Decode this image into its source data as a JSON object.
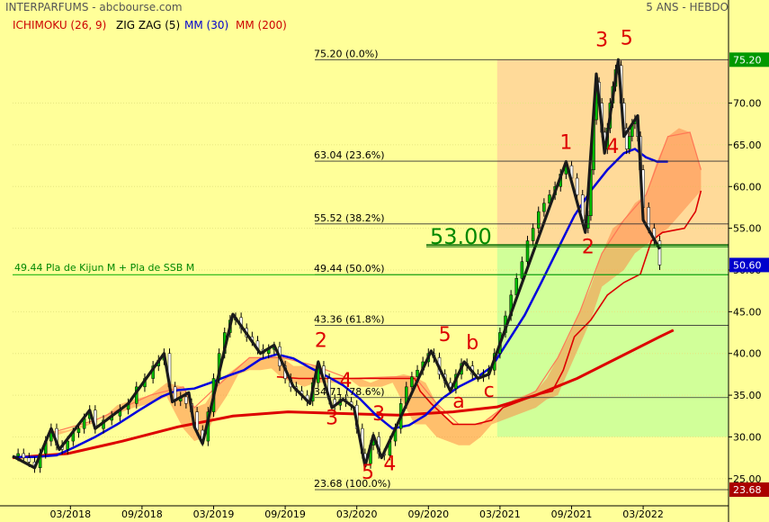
{
  "header": {
    "source": "INTERPARFUMS - abcbourse.com",
    "period": "5 ANS - HEBDO",
    "indicators": [
      {
        "label": "ICHIMOKU (26, 9)",
        "color": "#cc0000"
      },
      {
        "label": "ZIG ZAG (5)",
        "color": "#000000"
      },
      {
        "label": "MM (30)",
        "color": "#0000cc"
      },
      {
        "label": "MM (200)",
        "color": "#cc0000"
      }
    ]
  },
  "chart_data": {
    "type": "line",
    "ylim": [
      22.5,
      77.5
    ],
    "xlim": [
      0,
      260
    ],
    "y_ticks": [
      25,
      30,
      35,
      40,
      45,
      50,
      55,
      60,
      65,
      70
    ],
    "x_ticks": [
      {
        "label": "03/2018",
        "x": 21
      },
      {
        "label": "09/2018",
        "x": 47
      },
      {
        "label": "03/2019",
        "x": 73
      },
      {
        "label": "09/2019",
        "x": 99
      },
      {
        "label": "03/2020",
        "x": 125
      },
      {
        "label": "09/2020",
        "x": 151
      },
      {
        "label": "03/2021",
        "x": 177
      },
      {
        "label": "09/2021",
        "x": 203
      },
      {
        "label": "03/2022",
        "x": 229
      }
    ],
    "fib_levels": [
      {
        "price": 75.2,
        "label": "75.20  (0.0%)"
      },
      {
        "price": 63.04,
        "label": "63.04  (23.6%)"
      },
      {
        "price": 55.52,
        "label": "55.52  (38.2%)"
      },
      {
        "price": 49.44,
        "label": "49.44  (50.0%)"
      },
      {
        "price": 43.36,
        "label": "43.36  (61.8%)"
      },
      {
        "price": 34.71,
        "label": "34.71  (78.6%)"
      },
      {
        "price": 23.68,
        "label": "23.68  (100.0%)"
      }
    ],
    "fib_x_start": 176,
    "annotations": {
      "level_53": {
        "value": 53.0,
        "label": "53.00"
      },
      "level_kijun": {
        "value": 49.44,
        "label": "49.44 Pla de Kijun M + Pla de SSB M"
      }
    },
    "price_tags": [
      {
        "value": 75.2,
        "label": "75.20",
        "color": "#009900"
      },
      {
        "value": 50.6,
        "label": "50.60",
        "color": "#0000cc"
      },
      {
        "value": 23.68,
        "label": "23.68",
        "color": "#aa0000"
      }
    ],
    "wave_labels": [
      {
        "text": "2",
        "x": 112,
        "y": 40.8
      },
      {
        "text": "4",
        "x": 121,
        "y": 36.0
      },
      {
        "text": "3",
        "x": 116,
        "y": 31.5
      },
      {
        "text": "3",
        "x": 133,
        "y": 32.0
      },
      {
        "text": "5",
        "x": 129,
        "y": 25.0
      },
      {
        "text": "4",
        "x": 137,
        "y": 26.0
      },
      {
        "text": "5",
        "x": 157,
        "y": 41.5
      },
      {
        "text": "b",
        "x": 167,
        "y": 40.5
      },
      {
        "text": "a",
        "x": 162,
        "y": 33.5
      },
      {
        "text": "c",
        "x": 173,
        "y": 34.8
      },
      {
        "text": "1",
        "x": 201,
        "y": 64.5
      },
      {
        "text": "2",
        "x": 209,
        "y": 52.0
      },
      {
        "text": "3",
        "x": 214,
        "y": 76.8
      },
      {
        "text": "5",
        "x": 223,
        "y": 77.0
      },
      {
        "text": "4",
        "x": 218,
        "y": 64.0
      }
    ],
    "zigzag": [
      [
        0,
        27.7
      ],
      [
        8,
        26.3
      ],
      [
        14,
        31.0
      ],
      [
        17,
        28.5
      ],
      [
        28,
        33.2
      ],
      [
        30,
        31.0
      ],
      [
        42,
        34.0
      ],
      [
        55,
        40.0
      ],
      [
        58,
        34.2
      ],
      [
        64,
        35.3
      ],
      [
        66,
        31.2
      ],
      [
        69,
        29.2
      ],
      [
        80,
        44.7
      ],
      [
        90,
        40.0
      ],
      [
        95,
        41.0
      ],
      [
        102,
        36.0
      ],
      [
        108,
        34.0
      ],
      [
        111,
        39.0
      ],
      [
        116,
        33.5
      ],
      [
        120,
        34.5
      ],
      [
        124,
        33.5
      ],
      [
        128,
        26.5
      ],
      [
        131,
        30.2
      ],
      [
        134,
        27.5
      ],
      [
        139,
        31.0
      ],
      [
        152,
        40.3
      ],
      [
        159,
        35.5
      ],
      [
        164,
        39.0
      ],
      [
        169,
        37.0
      ],
      [
        173,
        37.5
      ],
      [
        201,
        63.0
      ],
      [
        208,
        54.5
      ],
      [
        212,
        73.5
      ],
      [
        215,
        64.0
      ],
      [
        220,
        75.2
      ],
      [
        222,
        66.0
      ],
      [
        227,
        68.5
      ],
      [
        229,
        56.0
      ],
      [
        235,
        52.5
      ]
    ],
    "close": [
      [
        0,
        27.7
      ],
      [
        2,
        28.0
      ],
      [
        4,
        27.5
      ],
      [
        6,
        27.0
      ],
      [
        8,
        26.3
      ],
      [
        10,
        28.0
      ],
      [
        12,
        29.5
      ],
      [
        14,
        31.0
      ],
      [
        16,
        29.0
      ],
      [
        18,
        28.5
      ],
      [
        20,
        29.5
      ],
      [
        22,
        30.5
      ],
      [
        24,
        31.0
      ],
      [
        26,
        32.2
      ],
      [
        28,
        33.2
      ],
      [
        30,
        31.0
      ],
      [
        33,
        32.0
      ],
      [
        36,
        32.5
      ],
      [
        39,
        33.3
      ],
      [
        42,
        34.0
      ],
      [
        45,
        36.0
      ],
      [
        48,
        37.0
      ],
      [
        51,
        38.5
      ],
      [
        53,
        39.2
      ],
      [
        55,
        40.0
      ],
      [
        57,
        36.0
      ],
      [
        59,
        34.3
      ],
      [
        61,
        34.8
      ],
      [
        63,
        34.0
      ],
      [
        65,
        33.0
      ],
      [
        67,
        30.8
      ],
      [
        69,
        29.5
      ],
      [
        71,
        33.0
      ],
      [
        73,
        37.0
      ],
      [
        75,
        40.0
      ],
      [
        77,
        42.5
      ],
      [
        79,
        44.0
      ],
      [
        81,
        44.3
      ],
      [
        83,
        43.0
      ],
      [
        85,
        42.0
      ],
      [
        87,
        41.5
      ],
      [
        89,
        40.5
      ],
      [
        91,
        40.0
      ],
      [
        93,
        40.5
      ],
      [
        95,
        40.8
      ],
      [
        97,
        38.5
      ],
      [
        99,
        37.0
      ],
      [
        101,
        36.0
      ],
      [
        103,
        35.5
      ],
      [
        105,
        35.0
      ],
      [
        107,
        34.3
      ],
      [
        109,
        36.5
      ],
      [
        111,
        38.5
      ],
      [
        113,
        37.0
      ],
      [
        115,
        34.5
      ],
      [
        117,
        33.8
      ],
      [
        119,
        34.5
      ],
      [
        121,
        34.2
      ],
      [
        123,
        33.8
      ],
      [
        125,
        31.0
      ],
      [
        127,
        28.0
      ],
      [
        128,
        26.8
      ],
      [
        130,
        29.0
      ],
      [
        131,
        30.0
      ],
      [
        133,
        28.0
      ],
      [
        135,
        27.8
      ],
      [
        137,
        29.5
      ],
      [
        139,
        31.0
      ],
      [
        141,
        34.0
      ],
      [
        143,
        36.0
      ],
      [
        145,
        37.2
      ],
      [
        147,
        38.0
      ],
      [
        149,
        39.0
      ],
      [
        151,
        40.0
      ],
      [
        153,
        39.5
      ],
      [
        155,
        37.5
      ],
      [
        157,
        36.5
      ],
      [
        159,
        35.8
      ],
      [
        161,
        37.5
      ],
      [
        163,
        38.8
      ],
      [
        165,
        38.5
      ],
      [
        167,
        37.5
      ],
      [
        169,
        37.2
      ],
      [
        171,
        37.5
      ],
      [
        173,
        38.0
      ],
      [
        175,
        40.0
      ],
      [
        177,
        42.5
      ],
      [
        179,
        44.5
      ],
      [
        181,
        47.0
      ],
      [
        183,
        49.0
      ],
      [
        185,
        51.0
      ],
      [
        187,
        53.5
      ],
      [
        189,
        55.0
      ],
      [
        191,
        57.0
      ],
      [
        193,
        58.0
      ],
      [
        195,
        59.0
      ],
      [
        197,
        60.0
      ],
      [
        199,
        61.5
      ],
      [
        201,
        62.5
      ],
      [
        203,
        61.0
      ],
      [
        205,
        59.0
      ],
      [
        207,
        56.0
      ],
      [
        208,
        55.0
      ],
      [
        209,
        56.5
      ],
      [
        210,
        62.0
      ],
      [
        211,
        68.0
      ],
      [
        212,
        72.5
      ],
      [
        213,
        70.0
      ],
      [
        214,
        66.5
      ],
      [
        215,
        64.5
      ],
      [
        216,
        67.0
      ],
      [
        217,
        70.0
      ],
      [
        218,
        72.0
      ],
      [
        219,
        74.0
      ],
      [
        220,
        74.5
      ],
      [
        221,
        70.0
      ],
      [
        222,
        67.0
      ],
      [
        223,
        64.5
      ],
      [
        224,
        66.0
      ],
      [
        225,
        67.5
      ],
      [
        226,
        68.0
      ],
      [
        227,
        66.0
      ],
      [
        228,
        62.0
      ],
      [
        229,
        57.5
      ],
      [
        231,
        55.0
      ],
      [
        233,
        53.5
      ],
      [
        235,
        50.6
      ]
    ],
    "ma30": [
      [
        0,
        27.6
      ],
      [
        8,
        27.6
      ],
      [
        16,
        27.8
      ],
      [
        22,
        28.7
      ],
      [
        30,
        30.0
      ],
      [
        38,
        31.5
      ],
      [
        46,
        33.2
      ],
      [
        54,
        34.8
      ],
      [
        60,
        35.6
      ],
      [
        66,
        35.8
      ],
      [
        72,
        36.5
      ],
      [
        78,
        37.3
      ],
      [
        84,
        38.0
      ],
      [
        90,
        39.3
      ],
      [
        96,
        39.9
      ],
      [
        102,
        39.4
      ],
      [
        108,
        38.3
      ],
      [
        114,
        37.3
      ],
      [
        120,
        36.2
      ],
      [
        126,
        34.6
      ],
      [
        132,
        32.6
      ],
      [
        138,
        31.0
      ],
      [
        144,
        31.4
      ],
      [
        150,
        32.6
      ],
      [
        156,
        34.6
      ],
      [
        162,
        36.0
      ],
      [
        168,
        37.0
      ],
      [
        174,
        38.4
      ],
      [
        180,
        41.5
      ],
      [
        186,
        44.6
      ],
      [
        192,
        48.5
      ],
      [
        198,
        52.5
      ],
      [
        204,
        56.5
      ],
      [
        210,
        59.5
      ],
      [
        216,
        62.0
      ],
      [
        222,
        64.0
      ],
      [
        226,
        64.5
      ],
      [
        230,
        63.5
      ],
      [
        234,
        63.0
      ],
      [
        238,
        63.0
      ]
    ],
    "ma200": [
      [
        0,
        27.5
      ],
      [
        20,
        28.0
      ],
      [
        40,
        29.5
      ],
      [
        60,
        31.2
      ],
      [
        80,
        32.5
      ],
      [
        100,
        33.0
      ],
      [
        120,
        32.8
      ],
      [
        140,
        32.6
      ],
      [
        160,
        33.0
      ],
      [
        176,
        33.6
      ],
      [
        190,
        35.0
      ],
      [
        205,
        37.0
      ],
      [
        220,
        39.5
      ],
      [
        235,
        42.0
      ],
      [
        240,
        42.8
      ]
    ],
    "kumo": [
      [
        14,
        30.0,
        30.5
      ],
      [
        20,
        30.6,
        30.8
      ],
      [
        26,
        31.2,
        31.5
      ],
      [
        32,
        32.0,
        32.0
      ],
      [
        38,
        32.8,
        33.8
      ],
      [
        44,
        33.5,
        34.5
      ],
      [
        50,
        34.0,
        35.0
      ],
      [
        56,
        34.8,
        36.5
      ],
      [
        62,
        31.0,
        36.0
      ],
      [
        66,
        29.5,
        33.5
      ],
      [
        70,
        30.0,
        34.0
      ],
      [
        74,
        33.0,
        36.0
      ],
      [
        78,
        35.0,
        37.5
      ],
      [
        82,
        37.5,
        38.5
      ],
      [
        86,
        38.0,
        39.5
      ],
      [
        90,
        38.0,
        39.5
      ],
      [
        94,
        38.2,
        39.8
      ],
      [
        98,
        37.0,
        39.5
      ],
      [
        102,
        36.5,
        38.5
      ],
      [
        106,
        36.0,
        38.5
      ],
      [
        110,
        36.5,
        38.5
      ],
      [
        114,
        36.5,
        37.0
      ],
      [
        118,
        36.5,
        37.0
      ],
      [
        122,
        37.0,
        37.0
      ],
      [
        126,
        36.0,
        37.0
      ],
      [
        130,
        36.0,
        36.5
      ],
      [
        134,
        36.0,
        37.0
      ],
      [
        138,
        36.5,
        37.2
      ],
      [
        142,
        34.0,
        37.5
      ],
      [
        146,
        31.5,
        37.2
      ],
      [
        150,
        31.5,
        36.5
      ],
      [
        154,
        30.0,
        34.0
      ],
      [
        158,
        29.5,
        32.0
      ],
      [
        162,
        29.0,
        31.5
      ],
      [
        166,
        29.0,
        31.5
      ],
      [
        170,
        30.0,
        31.5
      ],
      [
        174,
        31.5,
        32.5
      ],
      [
        178,
        32.0,
        33.5
      ],
      [
        182,
        32.5,
        34.5
      ],
      [
        186,
        33.0,
        35.0
      ],
      [
        190,
        33.5,
        35.5
      ],
      [
        194,
        34.5,
        37.0
      ],
      [
        198,
        35.0,
        39.5
      ],
      [
        202,
        38.0,
        42.0
      ],
      [
        206,
        41.0,
        45.0
      ],
      [
        210,
        44.0,
        48.0
      ],
      [
        214,
        48.0,
        52.0
      ],
      [
        218,
        49.0,
        55.0
      ],
      [
        222,
        50.0,
        56.0
      ],
      [
        226,
        52.0,
        58.0
      ],
      [
        230,
        53.0,
        59.0
      ],
      [
        234,
        54.0,
        63.0
      ],
      [
        238,
        55.0,
        66.0
      ],
      [
        242,
        56.5,
        67.0
      ],
      [
        246,
        58.0,
        66.5
      ],
      [
        250,
        59.5,
        62.0
      ]
    ],
    "ssa": [
      [
        14,
        30.5
      ],
      [
        30,
        32.0
      ],
      [
        50,
        35.0
      ],
      [
        62,
        36.0
      ],
      [
        66,
        33.5
      ],
      [
        74,
        36.0
      ],
      [
        86,
        39.5
      ],
      [
        98,
        39.5
      ],
      [
        110,
        38.5
      ],
      [
        122,
        37.0
      ],
      [
        138,
        37.2
      ],
      [
        146,
        37.2
      ],
      [
        154,
        34.0
      ],
      [
        162,
        31.5
      ],
      [
        170,
        31.5
      ],
      [
        178,
        33.5
      ],
      [
        190,
        35.5
      ],
      [
        198,
        39.5
      ],
      [
        206,
        45.0
      ],
      [
        214,
        52.0
      ],
      [
        222,
        56.0
      ],
      [
        230,
        59.0
      ],
      [
        238,
        66.0
      ],
      [
        246,
        66.5
      ],
      [
        250,
        62.0
      ]
    ],
    "ssb": [
      [
        96,
        37.2
      ],
      [
        104,
        37.0
      ],
      [
        112,
        37.0
      ],
      [
        118,
        37.0
      ],
      [
        124,
        37.0
      ],
      [
        130,
        37.0
      ],
      [
        136,
        37.0
      ],
      [
        142,
        37.0
      ],
      [
        146,
        37.0
      ],
      [
        148,
        35.5
      ],
      [
        152,
        34.0
      ],
      [
        160,
        31.5
      ],
      [
        168,
        31.5
      ],
      [
        174,
        32.0
      ],
      [
        178,
        33.5
      ],
      [
        190,
        35.0
      ],
      [
        196,
        35.5
      ],
      [
        200,
        38.0
      ],
      [
        204,
        42.0
      ],
      [
        210,
        44.0
      ],
      [
        216,
        47.0
      ],
      [
        222,
        48.5
      ],
      [
        228,
        49.5
      ],
      [
        232,
        53.5
      ],
      [
        236,
        54.5
      ],
      [
        244,
        55.0
      ],
      [
        248,
        57.0
      ],
      [
        250,
        59.5
      ]
    ]
  }
}
